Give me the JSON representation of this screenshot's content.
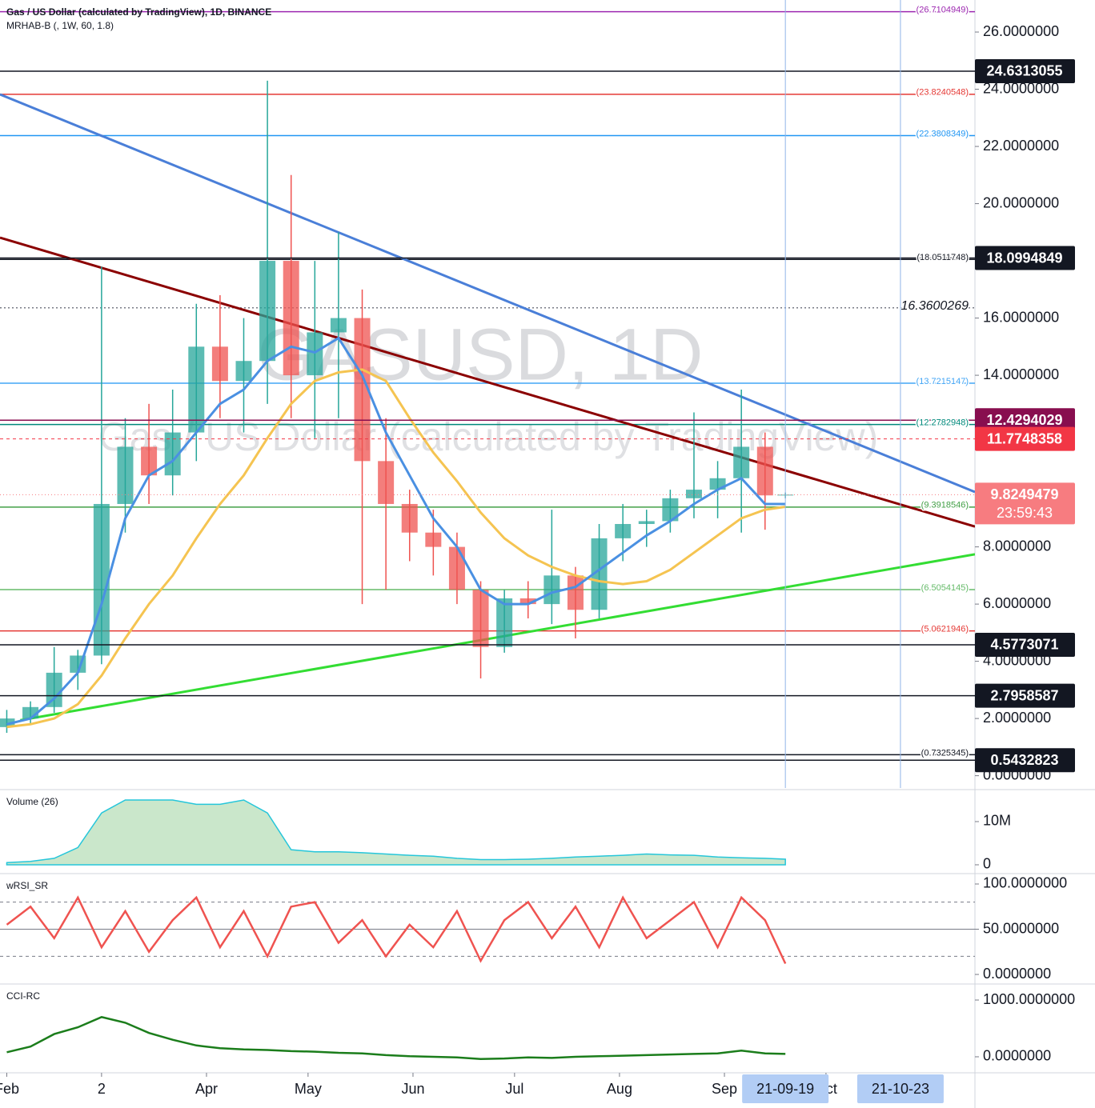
{
  "chart_data": [
    {
      "type": "candlestick",
      "title": "Gas / US Dollar (calculated by TradingView), 1D, BINANCE",
      "subtitle": "MRHAB-B (, 1W, 60, 1.8)",
      "watermark": "GASUSD, 1D",
      "watermark_subtitle": "Gas / US Dollar (calculated by TradingView)",
      "x": [
        "2021-02-01",
        "2021-02-08",
        "2021-02-15",
        "2021-02-22",
        "2021-03-01",
        "2021-03-08",
        "2021-03-15",
        "2021-03-22",
        "2021-03-29",
        "2021-04-05",
        "2021-04-12",
        "2021-04-19",
        "2021-04-26",
        "2021-05-03",
        "2021-05-10",
        "2021-05-17",
        "2021-05-24",
        "2021-05-31",
        "2021-06-07",
        "2021-06-14",
        "2021-06-21",
        "2021-06-28",
        "2021-07-05",
        "2021-07-12",
        "2021-07-19",
        "2021-07-26",
        "2021-08-02",
        "2021-08-09",
        "2021-08-16",
        "2021-08-23",
        "2021-08-30",
        "2021-09-06",
        "2021-09-13",
        "2021-09-19"
      ],
      "open": [
        1.7,
        2.0,
        2.4,
        3.6,
        4.2,
        9.5,
        11.5,
        10.5,
        12.0,
        15.0,
        13.8,
        14.5,
        18.0,
        14.0,
        15.5,
        16.0,
        11.0,
        9.5,
        8.5,
        8.0,
        6.5,
        4.5,
        6.2,
        6.0,
        7.0,
        5.8,
        8.3,
        8.8,
        8.9,
        9.7,
        10.0,
        10.4,
        11.5,
        9.8
      ],
      "high": [
        2.3,
        2.6,
        4.5,
        4.4,
        17.8,
        12.5,
        13.0,
        13.5,
        16.5,
        16.8,
        16.0,
        24.3,
        21.0,
        18.0,
        19.0,
        17.0,
        12.5,
        10.0,
        9.3,
        8.5,
        6.8,
        6.5,
        6.8,
        9.3,
        7.3,
        8.8,
        9.5,
        9.3,
        10.0,
        12.7,
        11.0,
        13.5,
        12.0,
        9.9
      ],
      "low": [
        1.5,
        1.8,
        2.2,
        3.0,
        3.9,
        8.5,
        9.5,
        9.8,
        11.0,
        12.5,
        12.0,
        13.0,
        12.5,
        11.8,
        12.5,
        6.0,
        6.5,
        7.5,
        7.0,
        6.0,
        3.4,
        4.3,
        5.5,
        5.3,
        4.8,
        5.5,
        7.5,
        8.0,
        8.5,
        9.0,
        9.0,
        8.5,
        8.6,
        9.7
      ],
      "close": [
        2.0,
        2.4,
        3.6,
        4.2,
        9.5,
        11.5,
        10.5,
        12.0,
        15.0,
        13.8,
        14.5,
        18.0,
        14.0,
        15.5,
        16.0,
        11.0,
        9.5,
        8.5,
        8.0,
        6.5,
        4.5,
        6.2,
        6.0,
        7.0,
        5.8,
        8.3,
        8.8,
        8.9,
        9.7,
        10.0,
        10.4,
        11.5,
        9.8,
        9.8249479
      ],
      "up_color": "#26a69a",
      "down_color": "#ef5350",
      "series": [
        {
          "color": "#f5c451",
          "values": [
            1.7,
            1.8,
            2.0,
            2.5,
            3.5,
            4.8,
            6.0,
            7.0,
            8.3,
            9.5,
            10.5,
            11.8,
            13.0,
            13.8,
            14.1,
            14.2,
            13.8,
            12.5,
            11.3,
            10.3,
            9.2,
            8.3,
            7.7,
            7.3,
            7.0,
            6.8,
            6.7,
            6.8,
            7.2,
            7.8,
            8.4,
            9.0,
            9.3,
            9.4
          ]
        },
        {
          "color": "#4a90e2",
          "values": [
            1.8,
            2.0,
            2.7,
            3.6,
            6.0,
            9.0,
            10.5,
            11.0,
            12.0,
            13.0,
            13.5,
            14.5,
            15.0,
            14.8,
            15.3,
            14.0,
            12.0,
            10.5,
            9.0,
            8.0,
            6.5,
            6.0,
            6.0,
            6.4,
            6.6,
            7.2,
            7.8,
            8.4,
            8.9,
            9.5,
            10.0,
            10.4,
            9.5,
            9.5
          ]
        }
      ],
      "xlim": [
        "2021-01-30",
        "2021-11-14"
      ],
      "xticks": [
        {
          "value": "2021-02-01",
          "label": "Feb"
        },
        {
          "value": "2021-03-01",
          "label": "2"
        },
        {
          "value": "2021-04-01",
          "label": "Apr"
        },
        {
          "value": "2021-05-01",
          "label": "May"
        },
        {
          "value": "2021-06-01",
          "label": "Jun"
        },
        {
          "value": "2021-07-01",
          "label": "Jul"
        },
        {
          "value": "2021-08-01",
          "label": "Aug"
        },
        {
          "value": "2021-09-01",
          "label": "Sep"
        },
        {
          "value": "2021-10-01",
          "label": "Oct"
        }
      ],
      "x_markers": [
        {
          "value": "2021-09-19",
          "label": "21-09-19"
        },
        {
          "value": "2021-10-23",
          "label": "21-10-23"
        }
      ],
      "ylim": [
        -0.43,
        27.12
      ],
      "yticks": [
        {
          "value": 0,
          "label": "0.0000000"
        },
        {
          "value": 2,
          "label": "2.0000000"
        },
        {
          "value": 4,
          "label": "4.0000000"
        },
        {
          "value": 6,
          "label": "6.0000000"
        },
        {
          "value": 8,
          "label": "8.0000000"
        },
        {
          "value": 14,
          "label": "14.0000000"
        },
        {
          "value": 16,
          "label": "16.0000000"
        },
        {
          "value": 20,
          "label": "20.0000000"
        },
        {
          "value": 22,
          "label": "22.0000000"
        },
        {
          "value": 24,
          "label": "24.0000000"
        },
        {
          "value": 26,
          "label": "26.0000000"
        }
      ],
      "levels": [
        {
          "value": 26.7104949,
          "label": "(26.7104949)",
          "color": "#9c27b0"
        },
        {
          "value": 23.8240548,
          "label": "(23.8240548)",
          "color": "#e53935"
        },
        {
          "value": 22.3808349,
          "label": "(22.3808349)",
          "color": "#2196f3"
        },
        {
          "value": 18.0511748,
          "label": "(18.0511748)",
          "color": "#131722"
        },
        {
          "value": 16.3600269,
          "color": "#787b86",
          "dash": true
        },
        {
          "value": 13.7215147,
          "label": "(13.7215147)",
          "color": "#42a5f5"
        },
        {
          "value": 12.2782948,
          "label": "(12.2782948)",
          "color": "#00897b"
        },
        {
          "value": 9.3918546,
          "label": "(9.3918546)",
          "color": "#43a047"
        },
        {
          "value": 6.5054145,
          "label": "(6.5054145)",
          "color": "#66bb6a"
        },
        {
          "value": 5.0621946,
          "label": "(5.0621946)",
          "color": "#e53935"
        },
        {
          "value": 0.7325345,
          "label": "(0.7325345)",
          "color": "#131722"
        }
      ],
      "price_tags": [
        {
          "value": 24.6313055,
          "color": "#131722"
        },
        {
          "value": 18.0994849,
          "color": "#131722"
        },
        {
          "value": 12.4294029,
          "color": "#880e4f"
        },
        {
          "value": 11.7748358,
          "color": "#f23645",
          "dash": true
        },
        {
          "value": 4.5773071,
          "color": "#131722"
        },
        {
          "value": 2.7958587,
          "color": "#131722"
        },
        {
          "value": 0.5432823,
          "color": "#131722"
        }
      ],
      "last_price": {
        "value": 9.8249479,
        "countdown": "23:59:43",
        "color": "#f77c80"
      },
      "trendlines": [
        {
          "x": [
            "2021-01-30",
            "2021-11-14"
          ],
          "y": [
            23.82,
            9.92
          ],
          "color": "#4a7fd8"
        },
        {
          "x": [
            "2021-01-30",
            "2021-11-14"
          ],
          "y": [
            18.81,
            8.71
          ],
          "color": "#8b0000"
        },
        {
          "x": [
            "2021-02-05",
            "2021-11-14"
          ],
          "y": [
            1.94,
            7.74
          ],
          "color": "#33dd33"
        }
      ]
    },
    {
      "type": "area",
      "title": "Volume (26)",
      "x": [
        "2021-02-01",
        "2021-02-08",
        "2021-02-15",
        "2021-02-22",
        "2021-03-01",
        "2021-03-08",
        "2021-03-15",
        "2021-03-22",
        "2021-03-29",
        "2021-04-05",
        "2021-04-12",
        "2021-04-19",
        "2021-04-26",
        "2021-05-03",
        "2021-05-10",
        "2021-05-17",
        "2021-05-24",
        "2021-05-31",
        "2021-06-07",
        "2021-06-14",
        "2021-06-21",
        "2021-06-28",
        "2021-07-05",
        "2021-07-12",
        "2021-07-19",
        "2021-07-26",
        "2021-08-02",
        "2021-08-09",
        "2021-08-16",
        "2021-08-23",
        "2021-08-30",
        "2021-09-06",
        "2021-09-13",
        "2021-09-19"
      ],
      "values": [
        500000,
        800000,
        1500000,
        4000000,
        12000000,
        15000000,
        15000000,
        15000000,
        14000000,
        14000000,
        15000000,
        12000000,
        3500000,
        3000000,
        3000000,
        2800000,
        2500000,
        2200000,
        2000000,
        1500000,
        1200000,
        1200000,
        1300000,
        1500000,
        1800000,
        2000000,
        2200000,
        2500000,
        2300000,
        2200000,
        1800000,
        1600000,
        1500000,
        1300000
      ],
      "color": "#66bb6a",
      "ylim": [
        -1670000,
        17220000
      ],
      "yticks": [
        0,
        {
          "value": 10000000,
          "label": "10M"
        }
      ]
    },
    {
      "type": "line",
      "title": "wRSI_SR",
      "x": [
        "2021-02-01",
        "2021-02-08",
        "2021-02-15",
        "2021-02-22",
        "2021-03-01",
        "2021-03-08",
        "2021-03-15",
        "2021-03-22",
        "2021-03-29",
        "2021-04-05",
        "2021-04-12",
        "2021-04-19",
        "2021-04-26",
        "2021-05-03",
        "2021-05-10",
        "2021-05-17",
        "2021-05-24",
        "2021-05-31",
        "2021-06-07",
        "2021-06-14",
        "2021-06-21",
        "2021-06-28",
        "2021-07-05",
        "2021-07-12",
        "2021-07-19",
        "2021-07-26",
        "2021-08-02",
        "2021-08-09",
        "2021-08-16",
        "2021-08-23",
        "2021-08-30",
        "2021-09-06",
        "2021-09-13",
        "2021-09-19"
      ],
      "values": [
        55,
        75,
        40,
        85,
        30,
        70,
        25,
        60,
        85,
        30,
        70,
        20,
        75,
        80,
        35,
        60,
        20,
        55,
        30,
        70,
        15,
        60,
        80,
        40,
        75,
        30,
        85,
        40,
        60,
        80,
        30,
        85,
        60,
        12
      ],
      "color": "#ef5350",
      "ylim": [
        -8.8,
        110.6
      ],
      "yticks": [
        {
          "value": 0,
          "label": "0.0000000"
        },
        {
          "value": 50,
          "label": "50.0000000"
        },
        {
          "value": 100,
          "label": "100.0000000"
        }
      ],
      "hlines": [
        20,
        50,
        80
      ]
    },
    {
      "type": "line",
      "title": "CCI-RC",
      "x": [
        "2021-02-01",
        "2021-02-08",
        "2021-02-15",
        "2021-02-22",
        "2021-03-01",
        "2021-03-08",
        "2021-03-15",
        "2021-03-22",
        "2021-03-29",
        "2021-04-05",
        "2021-04-12",
        "2021-04-19",
        "2021-04-26",
        "2021-05-03",
        "2021-05-10",
        "2021-05-17",
        "2021-05-24",
        "2021-05-31",
        "2021-06-07",
        "2021-06-14",
        "2021-06-21",
        "2021-06-28",
        "2021-07-05",
        "2021-07-12",
        "2021-07-19",
        "2021-07-26",
        "2021-08-02",
        "2021-08-09",
        "2021-08-16",
        "2021-08-23",
        "2021-08-30",
        "2021-09-06",
        "2021-09-13",
        "2021-09-19"
      ],
      "values": [
        80,
        180,
        400,
        520,
        700,
        600,
        420,
        300,
        200,
        150,
        130,
        120,
        100,
        90,
        70,
        60,
        30,
        10,
        0,
        -10,
        -40,
        -30,
        -10,
        -20,
        0,
        10,
        20,
        30,
        40,
        50,
        60,
        110,
        60,
        50
      ],
      "color": "#1b7d1b",
      "ylim": [
        -268,
        1268
      ],
      "yticks": [
        {
          "value": 0,
          "label": "0.0000000"
        },
        {
          "value": 1000,
          "label": "1000.0000000"
        }
      ]
    }
  ]
}
